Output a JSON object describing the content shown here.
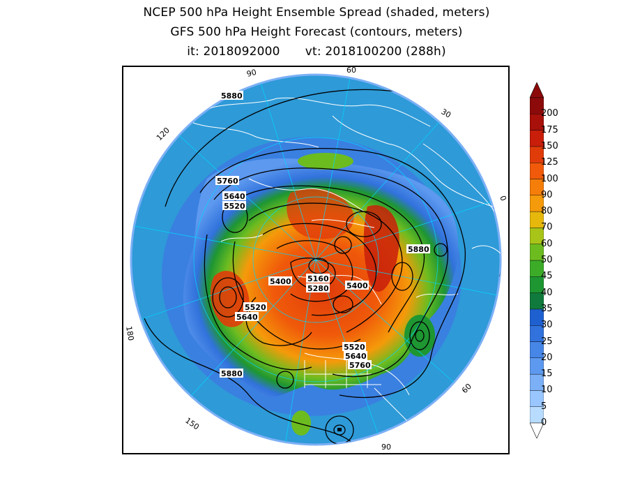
{
  "title": {
    "line1": "NCEP 500 hPa Height Ensemble Spread (shaded, meters)",
    "line2": "GFS 500 hPa Height Forecast (contours, meters)",
    "init": "it: 2018092000",
    "valid": "vt: 2018100200 (288h)"
  },
  "map": {
    "projection": "north-polar-stereographic",
    "longitude_labels": [
      "90",
      "60",
      "30",
      "0",
      "30",
      "60",
      "90",
      "120",
      "150",
      "180",
      "150",
      "120"
    ],
    "contour_labels": [
      "5880",
      "5760",
      "5640",
      "5520",
      "5400",
      "5160",
      "5280",
      "5400",
      "5520",
      "5640",
      "5880",
      "5880",
      "5520",
      "5640",
      "5760"
    ],
    "contour_color": "#000000",
    "coastline_color": "#ffffff",
    "gridline_color": "#00d8ff"
  },
  "colorbar": {
    "levels": [
      "0",
      "5",
      "10",
      "15",
      "20",
      "25",
      "30",
      "35",
      "40",
      "45",
      "50",
      "60",
      "70",
      "80",
      "90",
      "100",
      "125",
      "150",
      "175",
      "200"
    ],
    "colors": [
      "#b8dcff",
      "#99c6ff",
      "#7cb0f6",
      "#5d99ef",
      "#4686e6",
      "#3172dc",
      "#1e60d0",
      "#0f7a3c",
      "#1e9632",
      "#3cac28",
      "#6cbc20",
      "#a8c418",
      "#e6b80c",
      "#f59a0a",
      "#f57e0a",
      "#f05a0a",
      "#e03c0a",
      "#c81e0a",
      "#a8100a",
      "#8c0a0a"
    ]
  }
}
